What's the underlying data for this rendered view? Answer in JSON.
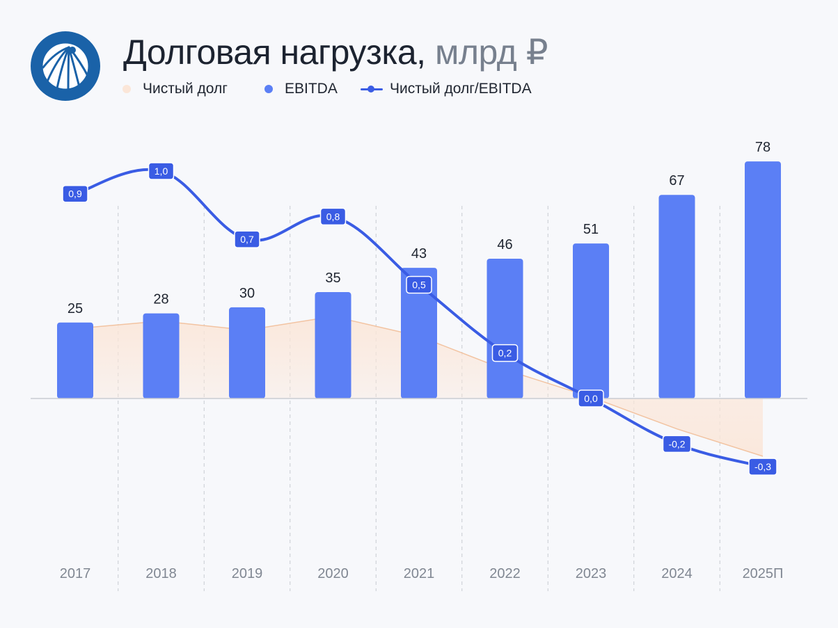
{
  "title": {
    "main": "Долговая нагрузка,",
    "unit": "млрд ₽"
  },
  "legend": {
    "net_debt": "Чистый долг",
    "ebitda": "EBITDA",
    "ratio": "Чистый долг/EBITDA"
  },
  "colors": {
    "bar": "#5b7ff5",
    "line": "#3a5ce4",
    "area_line": "#f2c3a1",
    "area_fill": "#fbe6d8",
    "label_box": "#3a5ce4",
    "axis_text": "#808792",
    "value_text": "#1f2530",
    "grid": "#c7cbd2"
  },
  "chart_data": {
    "type": "bar",
    "title": "Долговая нагрузка, млрд ₽",
    "categories": [
      "2017",
      "2018",
      "2019",
      "2020",
      "2021",
      "2022",
      "2023",
      "2024",
      "2025П"
    ],
    "series": [
      {
        "name": "EBITDA",
        "type": "bar",
        "values": [
          25,
          28,
          30,
          35,
          43,
          46,
          51,
          67,
          78
        ],
        "labels": [
          "25",
          "28",
          "30",
          "35",
          "43",
          "46",
          "51",
          "67",
          "78"
        ]
      },
      {
        "name": "Чистый долг",
        "type": "area",
        "values": [
          23,
          25.5,
          22.5,
          27,
          20.5,
          9.5,
          0.5,
          -10,
          -19
        ]
      },
      {
        "name": "Чистый долг/EBITDA",
        "type": "line",
        "values": [
          0.9,
          1.0,
          0.7,
          0.8,
          0.5,
          0.2,
          0.0,
          -0.2,
          -0.3
        ],
        "labels": [
          "0,9",
          "1,0",
          "0,7",
          "0,8",
          "0,5",
          "0,2",
          "0,0",
          "-0,2",
          "-0,3"
        ]
      }
    ],
    "xlabel": "",
    "ylabel": "",
    "ylim": [
      -40,
      110
    ],
    "ratio_ylim": [
      -1.1,
      1.6
    ],
    "legend_position": "top-left"
  }
}
